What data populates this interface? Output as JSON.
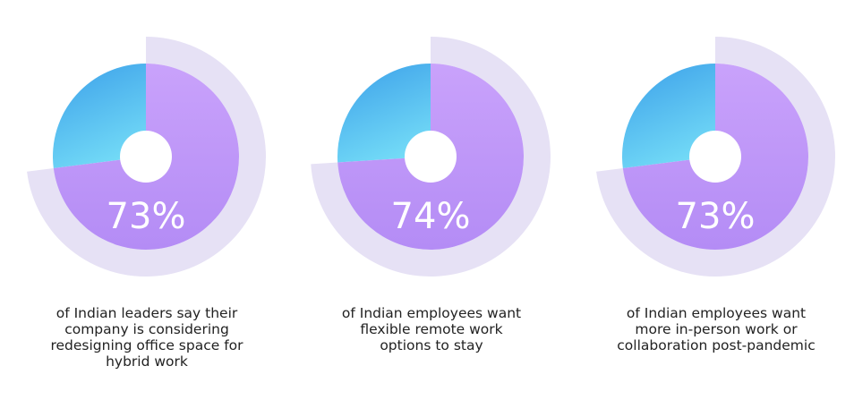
{
  "chart_data": [
    {
      "type": "pie",
      "value_label": "73%",
      "values": [
        73,
        27
      ],
      "caption_lines": [
        "of Indian leaders say their",
        "company is considering",
        "redesigning office space for",
        "hybrid work"
      ]
    },
    {
      "type": "pie",
      "value_label": "74%",
      "values": [
        74,
        26
      ],
      "caption_lines": [
        "of Indian employees want",
        "flexible remote work",
        "options to stay"
      ]
    },
    {
      "type": "pie",
      "value_label": "73%",
      "values": [
        73,
        27
      ],
      "caption_lines": [
        "of Indian employees want",
        "more in-person work or",
        "collaboration post-pandemic"
      ]
    }
  ],
  "colors": {
    "main_slice": "#b48cf5",
    "main_slice_light": "#c9a2fb",
    "rest_slice_top": "#74dcf7",
    "rest_slice_bottom": "#3fa3ea",
    "outer_ring": "#e6e1f5",
    "center_hole": "#ffffff",
    "value_text": "#ffffff",
    "caption_text": "#222222"
  }
}
